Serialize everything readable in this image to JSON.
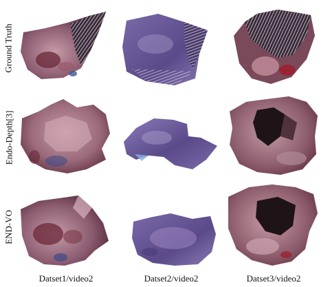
{
  "rows": [
    {
      "label": "Ground Truth"
    },
    {
      "label": "Endo-Depth[3]"
    },
    {
      "label": "END-VO"
    }
  ],
  "columns": [
    {
      "label": "Datset1/video2"
    },
    {
      "label": "Datset2/video2"
    },
    {
      "label": "Datset3/video2"
    }
  ],
  "colors": {
    "tissue_dark": "#5a2a3a",
    "tissue_mid": "#8a5a6e",
    "tissue_light": "#b58a9a",
    "tissue_purple": "#6a5a9a",
    "tissue_red": "#9a2a3a",
    "mesh_white": "#e8e8ee"
  }
}
